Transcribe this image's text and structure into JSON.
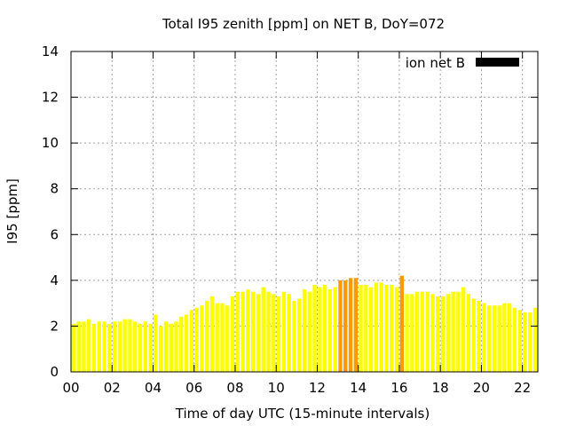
{
  "chart_data": {
    "type": "bar",
    "title": "Total I95 zenith [ppm] on NET B, DoY=072",
    "xlabel": "Time of day UTC (15-minute intervals)",
    "ylabel": "I95 [ppm]",
    "xlim": [
      0,
      22.75
    ],
    "ylim": [
      0,
      14
    ],
    "grid": true,
    "legend_position": "top-right",
    "x_ticks": [
      {
        "value": 0,
        "label": "00"
      },
      {
        "value": 2,
        "label": "02"
      },
      {
        "value": 4,
        "label": "04"
      },
      {
        "value": 6,
        "label": "06"
      },
      {
        "value": 8,
        "label": "08"
      },
      {
        "value": 10,
        "label": "10"
      },
      {
        "value": 12,
        "label": "12"
      },
      {
        "value": 14,
        "label": "14"
      },
      {
        "value": 16,
        "label": "16"
      },
      {
        "value": 18,
        "label": "18"
      },
      {
        "value": 20,
        "label": "20"
      },
      {
        "value": 22,
        "label": "22"
      }
    ],
    "y_ticks": [
      {
        "value": 0,
        "label": "0"
      },
      {
        "value": 2,
        "label": "2"
      },
      {
        "value": 4,
        "label": "4"
      },
      {
        "value": 6,
        "label": "6"
      },
      {
        "value": 8,
        "label": "8"
      },
      {
        "value": 10,
        "label": "10"
      },
      {
        "value": 12,
        "label": "12"
      },
      {
        "value": 14,
        "label": "14"
      }
    ],
    "legend": {
      "label": "ion net B",
      "color": "#000000"
    },
    "colors": {
      "normal": "#ffff00",
      "elevated": "#ff9900",
      "threshold": 4.0
    },
    "series": [
      {
        "interval_hours": 0.25,
        "values": [
          2.1,
          2.2,
          2.2,
          2.3,
          2.1,
          2.2,
          2.2,
          2.1,
          2.2,
          2.2,
          2.3,
          2.3,
          2.2,
          2.1,
          2.2,
          2.1,
          2.5,
          2.0,
          2.2,
          2.1,
          2.2,
          2.4,
          2.5,
          2.7,
          2.8,
          2.9,
          3.1,
          3.3,
          3.0,
          3.0,
          2.9,
          3.3,
          3.5,
          3.5,
          3.6,
          3.5,
          3.4,
          3.7,
          3.5,
          3.4,
          3.3,
          3.5,
          3.4,
          3.1,
          3.2,
          3.6,
          3.5,
          3.8,
          3.7,
          3.8,
          3.6,
          3.7,
          4.0,
          4.0,
          4.1,
          4.1,
          3.8,
          3.8,
          3.7,
          3.9,
          3.9,
          3.8,
          3.8,
          3.7,
          4.2,
          3.4,
          3.4,
          3.5,
          3.5,
          3.5,
          3.4,
          3.3,
          3.3,
          3.4,
          3.5,
          3.5,
          3.7,
          3.4,
          3.2,
          3.1,
          3.0,
          2.9,
          2.9,
          2.9,
          3.0,
          3.0,
          2.8,
          2.7,
          2.6,
          2.6,
          2.8
        ]
      }
    ]
  }
}
